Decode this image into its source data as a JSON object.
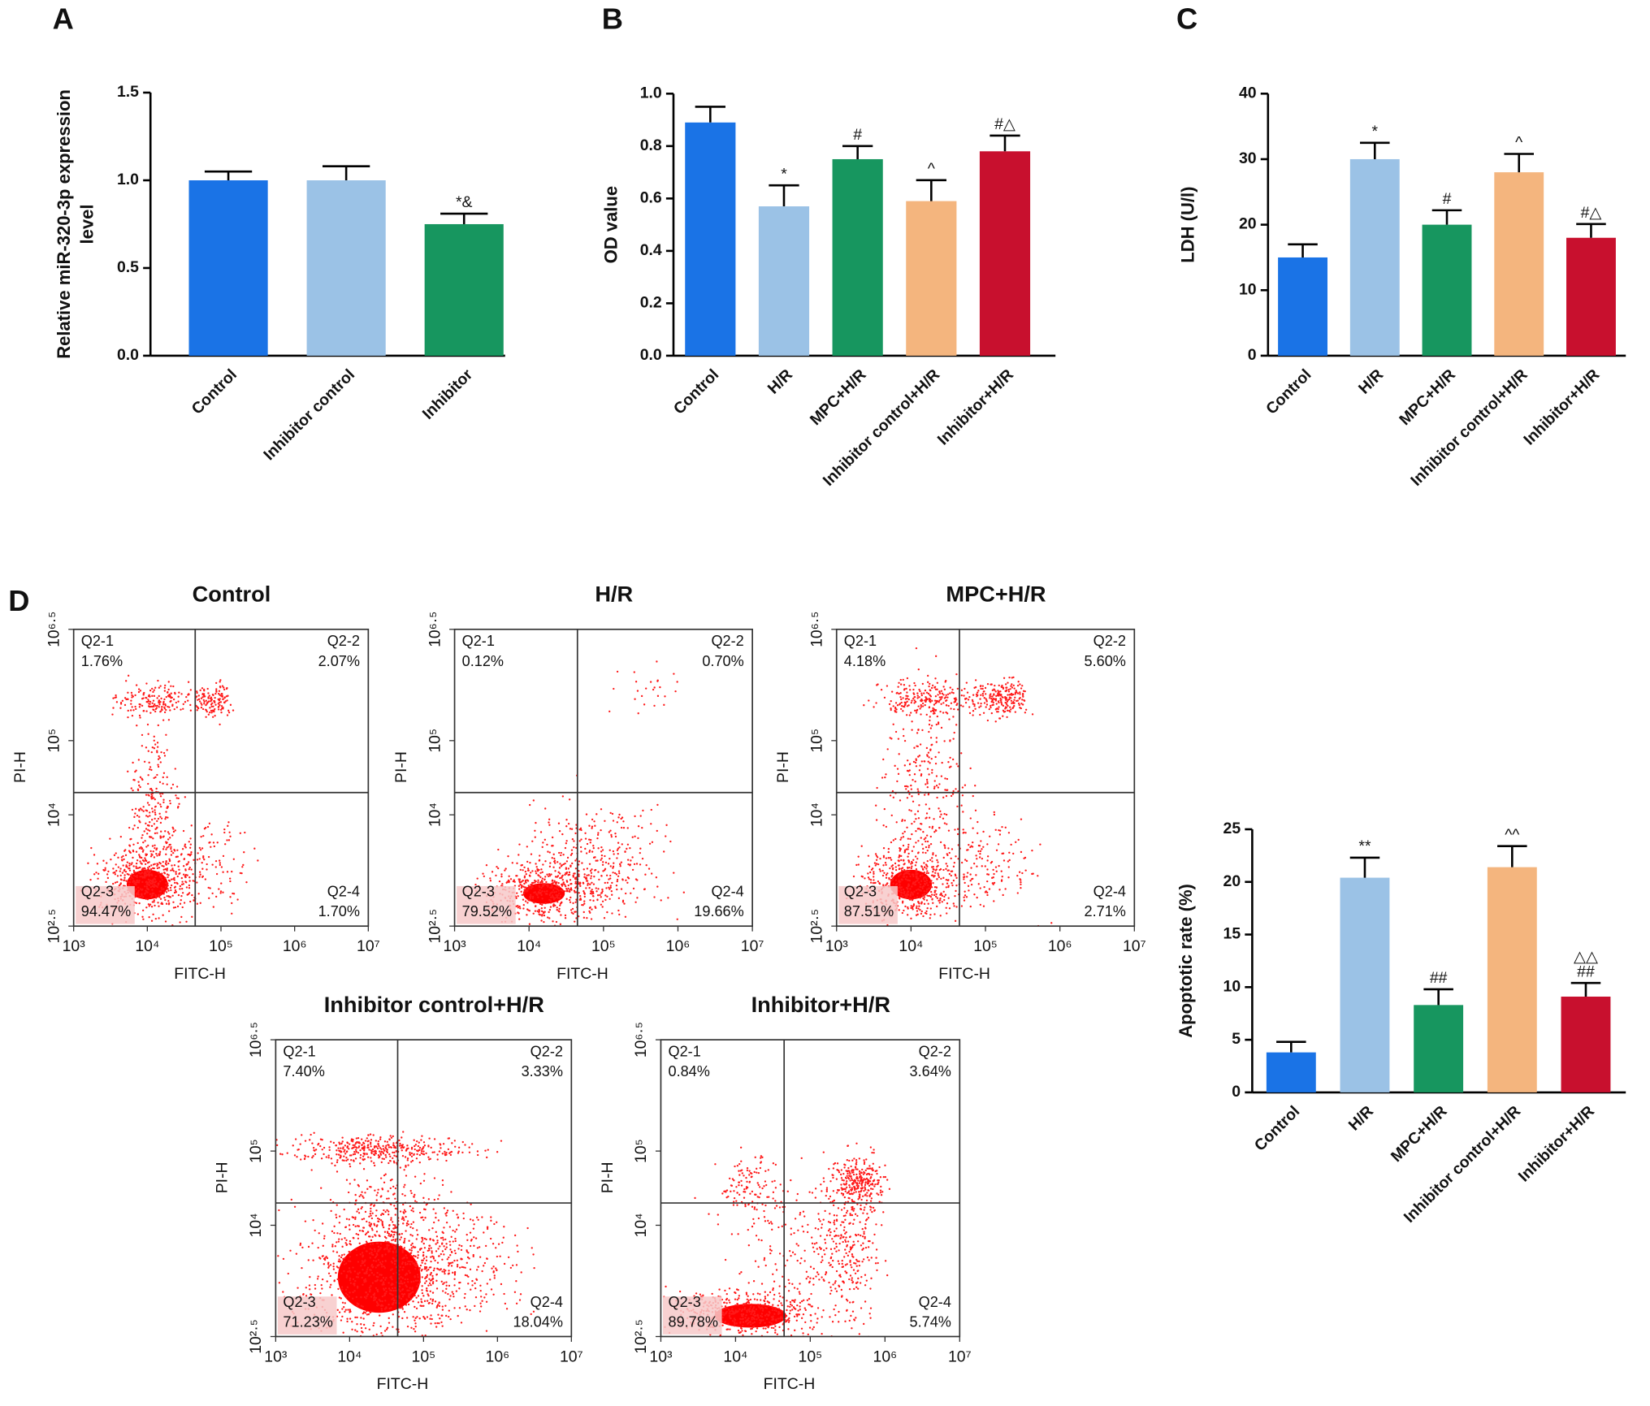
{
  "chart_data": [
    {
      "type": "bar",
      "panel_label": "A",
      "ylabel": [
        "Relative miR-320-3p expression",
        "level"
      ],
      "categories": [
        "Control",
        "Inhibitor control",
        "Inhibitor"
      ],
      "values": [
        1.0,
        1.0,
        0.75
      ],
      "errors": [
        0.05,
        0.08,
        0.06
      ],
      "colors": [
        "#1a73e6",
        "#9bc2e6",
        "#17965f"
      ],
      "annotations": [
        {
          "index": 2,
          "text": "*&"
        }
      ],
      "ylim": [
        0,
        1.5
      ],
      "yticks": [
        {
          "value": 0,
          "label": "0.0"
        },
        {
          "value": 0.5,
          "label": "0.5"
        },
        {
          "value": 1,
          "label": "1.0"
        },
        {
          "value": 1.5,
          "label": "1.5"
        }
      ]
    },
    {
      "type": "bar",
      "panel_label": "B",
      "ylabel": "OD value",
      "categories": [
        "Control",
        "H/R",
        "MPC+H/R",
        "Inhibitor control+H/R",
        "Inhibitor+H/R"
      ],
      "values": [
        0.89,
        0.57,
        0.75,
        0.59,
        0.78
      ],
      "errors": [
        0.06,
        0.08,
        0.05,
        0.08,
        0.06
      ],
      "colors": [
        "#1a73e6",
        "#9bc2e6",
        "#17965f",
        "#f4b57e",
        "#c8102e"
      ],
      "annotations": [
        {
          "index": 1,
          "text": "*"
        },
        {
          "index": 2,
          "text": "#"
        },
        {
          "index": 3,
          "text": "^"
        },
        {
          "index": 4,
          "text": "#△"
        }
      ],
      "ylim": [
        0,
        1.0
      ],
      "yticks": [
        {
          "value": 0,
          "label": "0.0"
        },
        {
          "value": 0.2,
          "label": "0.2"
        },
        {
          "value": 0.4,
          "label": "0.4"
        },
        {
          "value": 0.6,
          "label": "0.6"
        },
        {
          "value": 0.8,
          "label": "0.8"
        },
        {
          "value": 1,
          "label": "1.0"
        }
      ]
    },
    {
      "type": "bar",
      "panel_label": "C",
      "ylabel": "LDH (U/l)",
      "categories": [
        "Control",
        "H/R",
        "MPC+H/R",
        "Inhibitor control+H/R",
        "Inhibitor+H/R"
      ],
      "values": [
        15,
        30,
        20,
        28,
        18
      ],
      "errors": [
        2,
        2.5,
        2.2,
        2.8,
        2.1
      ],
      "colors": [
        "#1a73e6",
        "#9bc2e6",
        "#17965f",
        "#f4b57e",
        "#c8102e"
      ],
      "annotations": [
        {
          "index": 1,
          "text": "*"
        },
        {
          "index": 2,
          "text": "#"
        },
        {
          "index": 3,
          "text": "^"
        },
        {
          "index": 4,
          "text": "#△"
        }
      ],
      "ylim": [
        0,
        40
      ],
      "yticks": [
        0,
        10,
        20,
        30,
        40
      ]
    },
    {
      "type": "scatter",
      "panel_label": "D",
      "title": "Control",
      "xlabel": "FITC-H",
      "ylabel": "PI-H",
      "log_scale": true,
      "quadrants": [
        "Q2-1",
        "Q2-2",
        "Q2-3",
        "Q2-4"
      ],
      "values": [
        1.76,
        2.07,
        94.47,
        1.7
      ],
      "value_labels": [
        "1.76%",
        "2.07%",
        "94.47%",
        "1.70%"
      ],
      "gates": {
        "x": 44668,
        "y": 19953
      },
      "xlim": [
        1000,
        10000000
      ],
      "xticks": [
        {
          "value": 1000,
          "label": "10³"
        },
        {
          "value": 10000,
          "label": "10⁴"
        },
        {
          "value": 100000,
          "label": "10⁵"
        },
        {
          "value": 1000000,
          "label": "10⁶"
        },
        {
          "value": 10000000,
          "label": "10⁷"
        }
      ],
      "ylim": [
        316.2278,
        3162277.66
      ],
      "yticks": [
        {
          "value": 316.2278,
          "label": "10²·⁵"
        },
        {
          "value": 10000,
          "label": "10⁴"
        },
        {
          "value": 100000,
          "label": "10⁵"
        },
        {
          "value": 3162277.66,
          "label": "10⁶·⁵"
        }
      ]
    },
    {
      "type": "scatter",
      "title": "H/R",
      "xlabel": "FITC-H",
      "ylabel": "PI-H",
      "log_scale": true,
      "quadrants": [
        "Q2-1",
        "Q2-2",
        "Q2-3",
        "Q2-4"
      ],
      "values": [
        0.12,
        0.7,
        79.52,
        19.66
      ],
      "value_labels": [
        "0.12%",
        "0.70%",
        "79.52%",
        "19.66%"
      ],
      "gates": {
        "x": 44668,
        "y": 19953
      },
      "xlim": [
        1000,
        10000000
      ],
      "xticks": [
        {
          "value": 1000,
          "label": "10³"
        },
        {
          "value": 10000,
          "label": "10⁴"
        },
        {
          "value": 100000,
          "label": "10⁵"
        },
        {
          "value": 1000000,
          "label": "10⁶"
        },
        {
          "value": 10000000,
          "label": "10⁷"
        }
      ],
      "ylim": [
        316.2278,
        3162277.66
      ],
      "yticks": [
        {
          "value": 316.2278,
          "label": "10²·⁵"
        },
        {
          "value": 10000,
          "label": "10⁴"
        },
        {
          "value": 100000,
          "label": "10⁵"
        },
        {
          "value": 3162277.66,
          "label": "10⁶·⁵"
        }
      ]
    },
    {
      "type": "scatter",
      "title": "MPC+H/R",
      "xlabel": "FITC-H",
      "ylabel": "PI-H",
      "log_scale": true,
      "quadrants": [
        "Q2-1",
        "Q2-2",
        "Q2-3",
        "Q2-4"
      ],
      "values": [
        4.18,
        5.6,
        87.51,
        2.71
      ],
      "value_labels": [
        "4.18%",
        "5.60%",
        "87.51%",
        "2.71%"
      ],
      "gates": {
        "x": 44668,
        "y": 19953
      },
      "xlim": [
        1000,
        10000000
      ],
      "xticks": [
        {
          "value": 1000,
          "label": "10³"
        },
        {
          "value": 10000,
          "label": "10⁴"
        },
        {
          "value": 100000,
          "label": "10⁵"
        },
        {
          "value": 1000000,
          "label": "10⁶"
        },
        {
          "value": 10000000,
          "label": "10⁷"
        }
      ],
      "ylim": [
        316.2278,
        3162277.66
      ],
      "yticks": [
        {
          "value": 316.2278,
          "label": "10²·⁵"
        },
        {
          "value": 10000,
          "label": "10⁴"
        },
        {
          "value": 100000,
          "label": "10⁵"
        },
        {
          "value": 3162277.66,
          "label": "10⁶·⁵"
        }
      ]
    },
    {
      "type": "scatter",
      "title": "Inhibitor control+H/R",
      "xlabel": "FITC-H",
      "ylabel": "PI-H",
      "log_scale": true,
      "quadrants": [
        "Q2-1",
        "Q2-2",
        "Q2-3",
        "Q2-4"
      ],
      "values": [
        7.4,
        3.33,
        71.23,
        18.04
      ],
      "value_labels": [
        "7.40%",
        "3.33%",
        "71.23%",
        "18.04%"
      ],
      "gates": {
        "x": 44668,
        "y": 19953
      },
      "xlim": [
        1000,
        10000000
      ],
      "xticks": [
        {
          "value": 1000,
          "label": "10³"
        },
        {
          "value": 10000,
          "label": "10⁴"
        },
        {
          "value": 100000,
          "label": "10⁵"
        },
        {
          "value": 1000000,
          "label": "10⁶"
        },
        {
          "value": 10000000,
          "label": "10⁷"
        }
      ],
      "ylim": [
        316.2278,
        3162277.66
      ],
      "yticks": [
        {
          "value": 316.2278,
          "label": "10²·⁵"
        },
        {
          "value": 10000,
          "label": "10⁴"
        },
        {
          "value": 100000,
          "label": "10⁵"
        },
        {
          "value": 3162277.66,
          "label": "10⁶·⁵"
        }
      ]
    },
    {
      "type": "scatter",
      "title": "Inhibitor+H/R",
      "xlabel": "FITC-H",
      "ylabel": "PI-H",
      "log_scale": true,
      "quadrants": [
        "Q2-1",
        "Q2-2",
        "Q2-3",
        "Q2-4"
      ],
      "values": [
        0.84,
        3.64,
        89.78,
        5.74
      ],
      "value_labels": [
        "0.84%",
        "3.64%",
        "89.78%",
        "5.74%"
      ],
      "gates": {
        "x": 44668,
        "y": 19953
      },
      "xlim": [
        1000,
        10000000
      ],
      "xticks": [
        {
          "value": 1000,
          "label": "10³"
        },
        {
          "value": 10000,
          "label": "10⁴"
        },
        {
          "value": 100000,
          "label": "10⁵"
        },
        {
          "value": 1000000,
          "label": "10⁶"
        },
        {
          "value": 10000000,
          "label": "10⁷"
        }
      ],
      "ylim": [
        316.2278,
        3162277.66
      ],
      "yticks": [
        {
          "value": 316.2278,
          "label": "10²·⁵"
        },
        {
          "value": 10000,
          "label": "10⁴"
        },
        {
          "value": 100000,
          "label": "10⁵"
        },
        {
          "value": 3162277.66,
          "label": "10⁶·⁵"
        }
      ]
    },
    {
      "type": "bar",
      "ylabel": "Apoptotic rate (%)",
      "categories": [
        "Control",
        "H/R",
        "MPC+H/R",
        "Inhibitor control+H/R",
        "Inhibitor+H/R"
      ],
      "values": [
        3.8,
        20.4,
        8.3,
        21.4,
        9.1
      ],
      "errors": [
        1.0,
        1.9,
        1.5,
        2.0,
        1.3
      ],
      "colors": [
        "#1a73e6",
        "#9bc2e6",
        "#17965f",
        "#f4b57e",
        "#c8102e"
      ],
      "annotations": [
        {
          "index": 1,
          "text": "**"
        },
        {
          "index": 2,
          "text": "##"
        },
        {
          "index": 3,
          "text": "^^"
        },
        {
          "index": 4,
          "text": "##"
        },
        {
          "index": 4,
          "text": "△△"
        }
      ],
      "ylim": [
        0,
        25
      ],
      "yticks": [
        0,
        5,
        10,
        15,
        20,
        25
      ]
    }
  ]
}
